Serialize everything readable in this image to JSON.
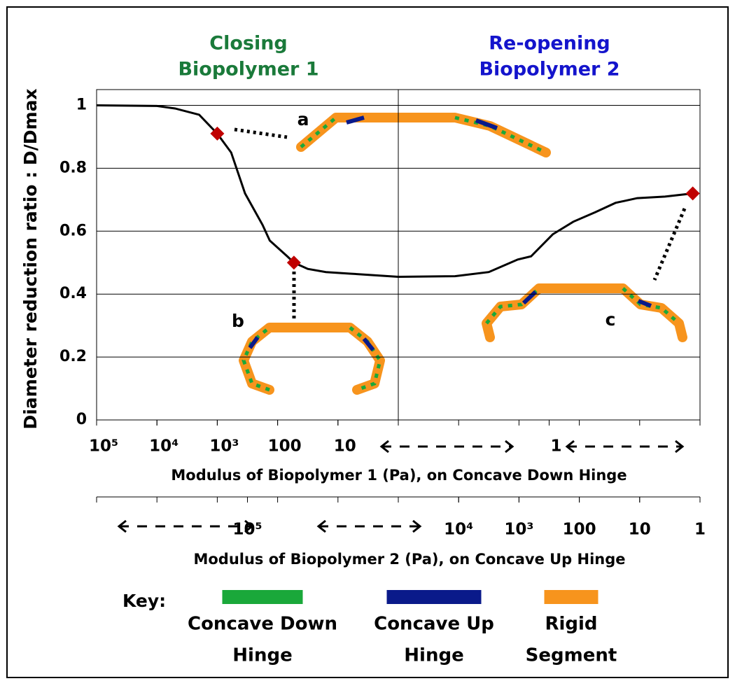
{
  "chart_data": {
    "type": "line",
    "ylabel": "Diameter reduction ratio : D/Dmax",
    "xlabel": "Modulus of Biopolymer 1 (Pa), on Concave Down Hinge",
    "x2label": "Modulus of Biopolymer 2 (Pa), on Concave Up Hinge",
    "headers": [
      {
        "lines": [
          "Closing",
          "Biopolymer 1"
        ],
        "color": "#1a7a3a"
      },
      {
        "lines": [
          "Re-opening",
          "Biopolymer 2"
        ],
        "color": "#1414cc"
      }
    ],
    "xlim": [
      0,
      10
    ],
    "ylim": [
      0,
      1.05
    ],
    "yticks": [
      0,
      0.2,
      0.4,
      0.6,
      0.8,
      1
    ],
    "xticks": [
      {
        "value": 0,
        "label": "10⁵"
      },
      {
        "value": 1,
        "label": "10⁴"
      },
      {
        "value": 2,
        "label": "10³"
      },
      {
        "value": 3,
        "label": "100"
      },
      {
        "value": 4,
        "label": "10"
      },
      {
        "value": 7.5,
        "label": "1"
      }
    ],
    "x2ticks": [
      {
        "value": 2.5,
        "label": "10⁵"
      },
      {
        "value": 6,
        "label": "10⁴"
      },
      {
        "value": 7,
        "label": "10³"
      },
      {
        "value": 8,
        "label": "100"
      },
      {
        "value": 9,
        "label": "10"
      },
      {
        "value": 10,
        "label": "1"
      }
    ],
    "grid": true,
    "series": [
      {
        "color": "#000000",
        "x": [
          0,
          1,
          1.3,
          1.7,
          2,
          2.23,
          2.46,
          2.75,
          2.87,
          3.16,
          3.27,
          3.5,
          3.8,
          4.2,
          5,
          5.94,
          6.5,
          6.98,
          7.2,
          7.56,
          7.9,
          8.26,
          8.6,
          8.96,
          9.42,
          9.88
        ],
        "values": [
          1,
          0.998,
          0.99,
          0.97,
          0.91,
          0.85,
          0.72,
          0.62,
          0.57,
          0.52,
          0.5,
          0.48,
          0.47,
          0.465,
          0.455,
          0.457,
          0.47,
          0.51,
          0.52,
          0.59,
          0.63,
          0.66,
          0.69,
          0.705,
          0.71,
          0.72
        ]
      },
      {
        "color": "#c00000",
        "marker": "diamond",
        "x": [
          2,
          3.27,
          9.88
        ],
        "values": [
          0.91,
          0.5,
          0.72
        ],
        "labels": [
          "a",
          "b",
          "c"
        ]
      }
    ],
    "key": {
      "title": "Key:",
      "items": [
        {
          "lines": [
            "Concave Down",
            "Hinge"
          ],
          "color": "#1aa83a"
        },
        {
          "lines": [
            "Concave Up",
            "Hinge"
          ],
          "color": "#0a1a8a"
        },
        {
          "lines": [
            "Rigid",
            "Segment"
          ],
          "color": "#f7941d"
        }
      ]
    }
  }
}
